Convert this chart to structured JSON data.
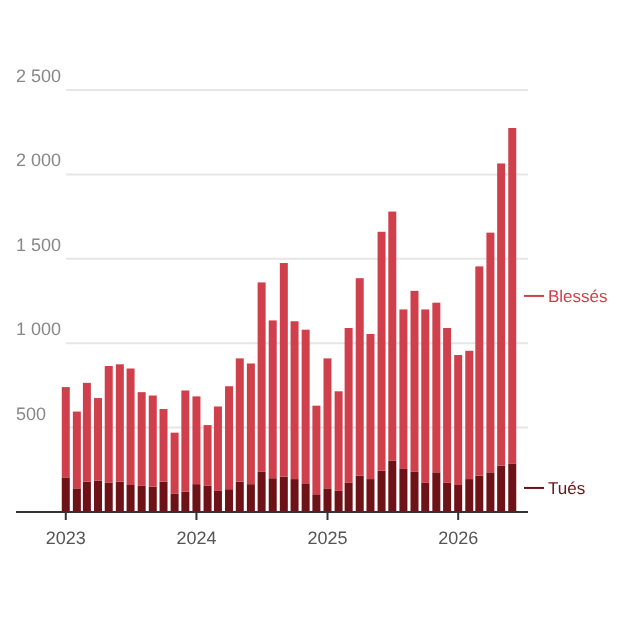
{
  "chart_data": {
    "type": "bar",
    "stacked": true,
    "x": [
      "2023-01",
      "2023-02",
      "2023-03",
      "2023-04",
      "2023-05",
      "2023-06",
      "2023-07",
      "2023-08",
      "2023-09",
      "2023-10",
      "2023-11",
      "2023-12",
      "2024-01",
      "2024-02",
      "2024-03",
      "2024-04",
      "2024-05",
      "2024-06",
      "2024-07",
      "2024-08",
      "2024-09",
      "2024-10",
      "2024-11",
      "2024-12",
      "2025-01",
      "2025-02",
      "2025-03",
      "2025-04",
      "2025-05",
      "2025-06",
      "2025-07",
      "2025-08",
      "2025-09",
      "2025-10",
      "2025-11",
      "2025-12",
      "2026-01",
      "2026-02",
      "2026-03",
      "2026-04",
      "2026-05",
      "2026-06"
    ],
    "series": [
      {
        "name": "Tués",
        "color": "#6e1218",
        "values": [
          205,
          140,
          180,
          185,
          175,
          180,
          160,
          155,
          150,
          180,
          110,
          120,
          165,
          155,
          125,
          135,
          180,
          165,
          240,
          200,
          210,
          195,
          170,
          105,
          140,
          125,
          175,
          215,
          195,
          245,
          305,
          255,
          240,
          175,
          235,
          175,
          160,
          195,
          215,
          235,
          275,
          285
        ]
      },
      {
        "name": "Blessés",
        "color": "#d0404c",
        "values": [
          535,
          455,
          585,
          490,
          690,
          695,
          690,
          555,
          540,
          430,
          360,
          600,
          520,
          360,
          500,
          610,
          730,
          715,
          1120,
          935,
          1265,
          935,
          910,
          525,
          770,
          590,
          915,
          1170,
          860,
          1415,
          1475,
          945,
          1070,
          1025,
          1005,
          915,
          770,
          760,
          1240,
          1420,
          1790,
          1990
        ]
      }
    ],
    "xlim": [
      "2022-08-15",
      "2026-07-15"
    ],
    "xticks": [
      {
        "value": "2023-01",
        "label": "2023"
      },
      {
        "value": "2024-01",
        "label": "2024"
      },
      {
        "value": "2025-01",
        "label": "2025"
      },
      {
        "value": "2026-01",
        "label": "2026"
      }
    ],
    "ylim": [
      0,
      2500
    ],
    "yticks": [
      500,
      {
        "value": 1000,
        "label": "1 000"
      },
      {
        "value": 1500,
        "label": "1 500"
      },
      {
        "value": 2000,
        "label": "2 000"
      },
      {
        "value": 2500,
        "label": "2 500"
      }
    ],
    "grid": "y",
    "legend": "right"
  }
}
